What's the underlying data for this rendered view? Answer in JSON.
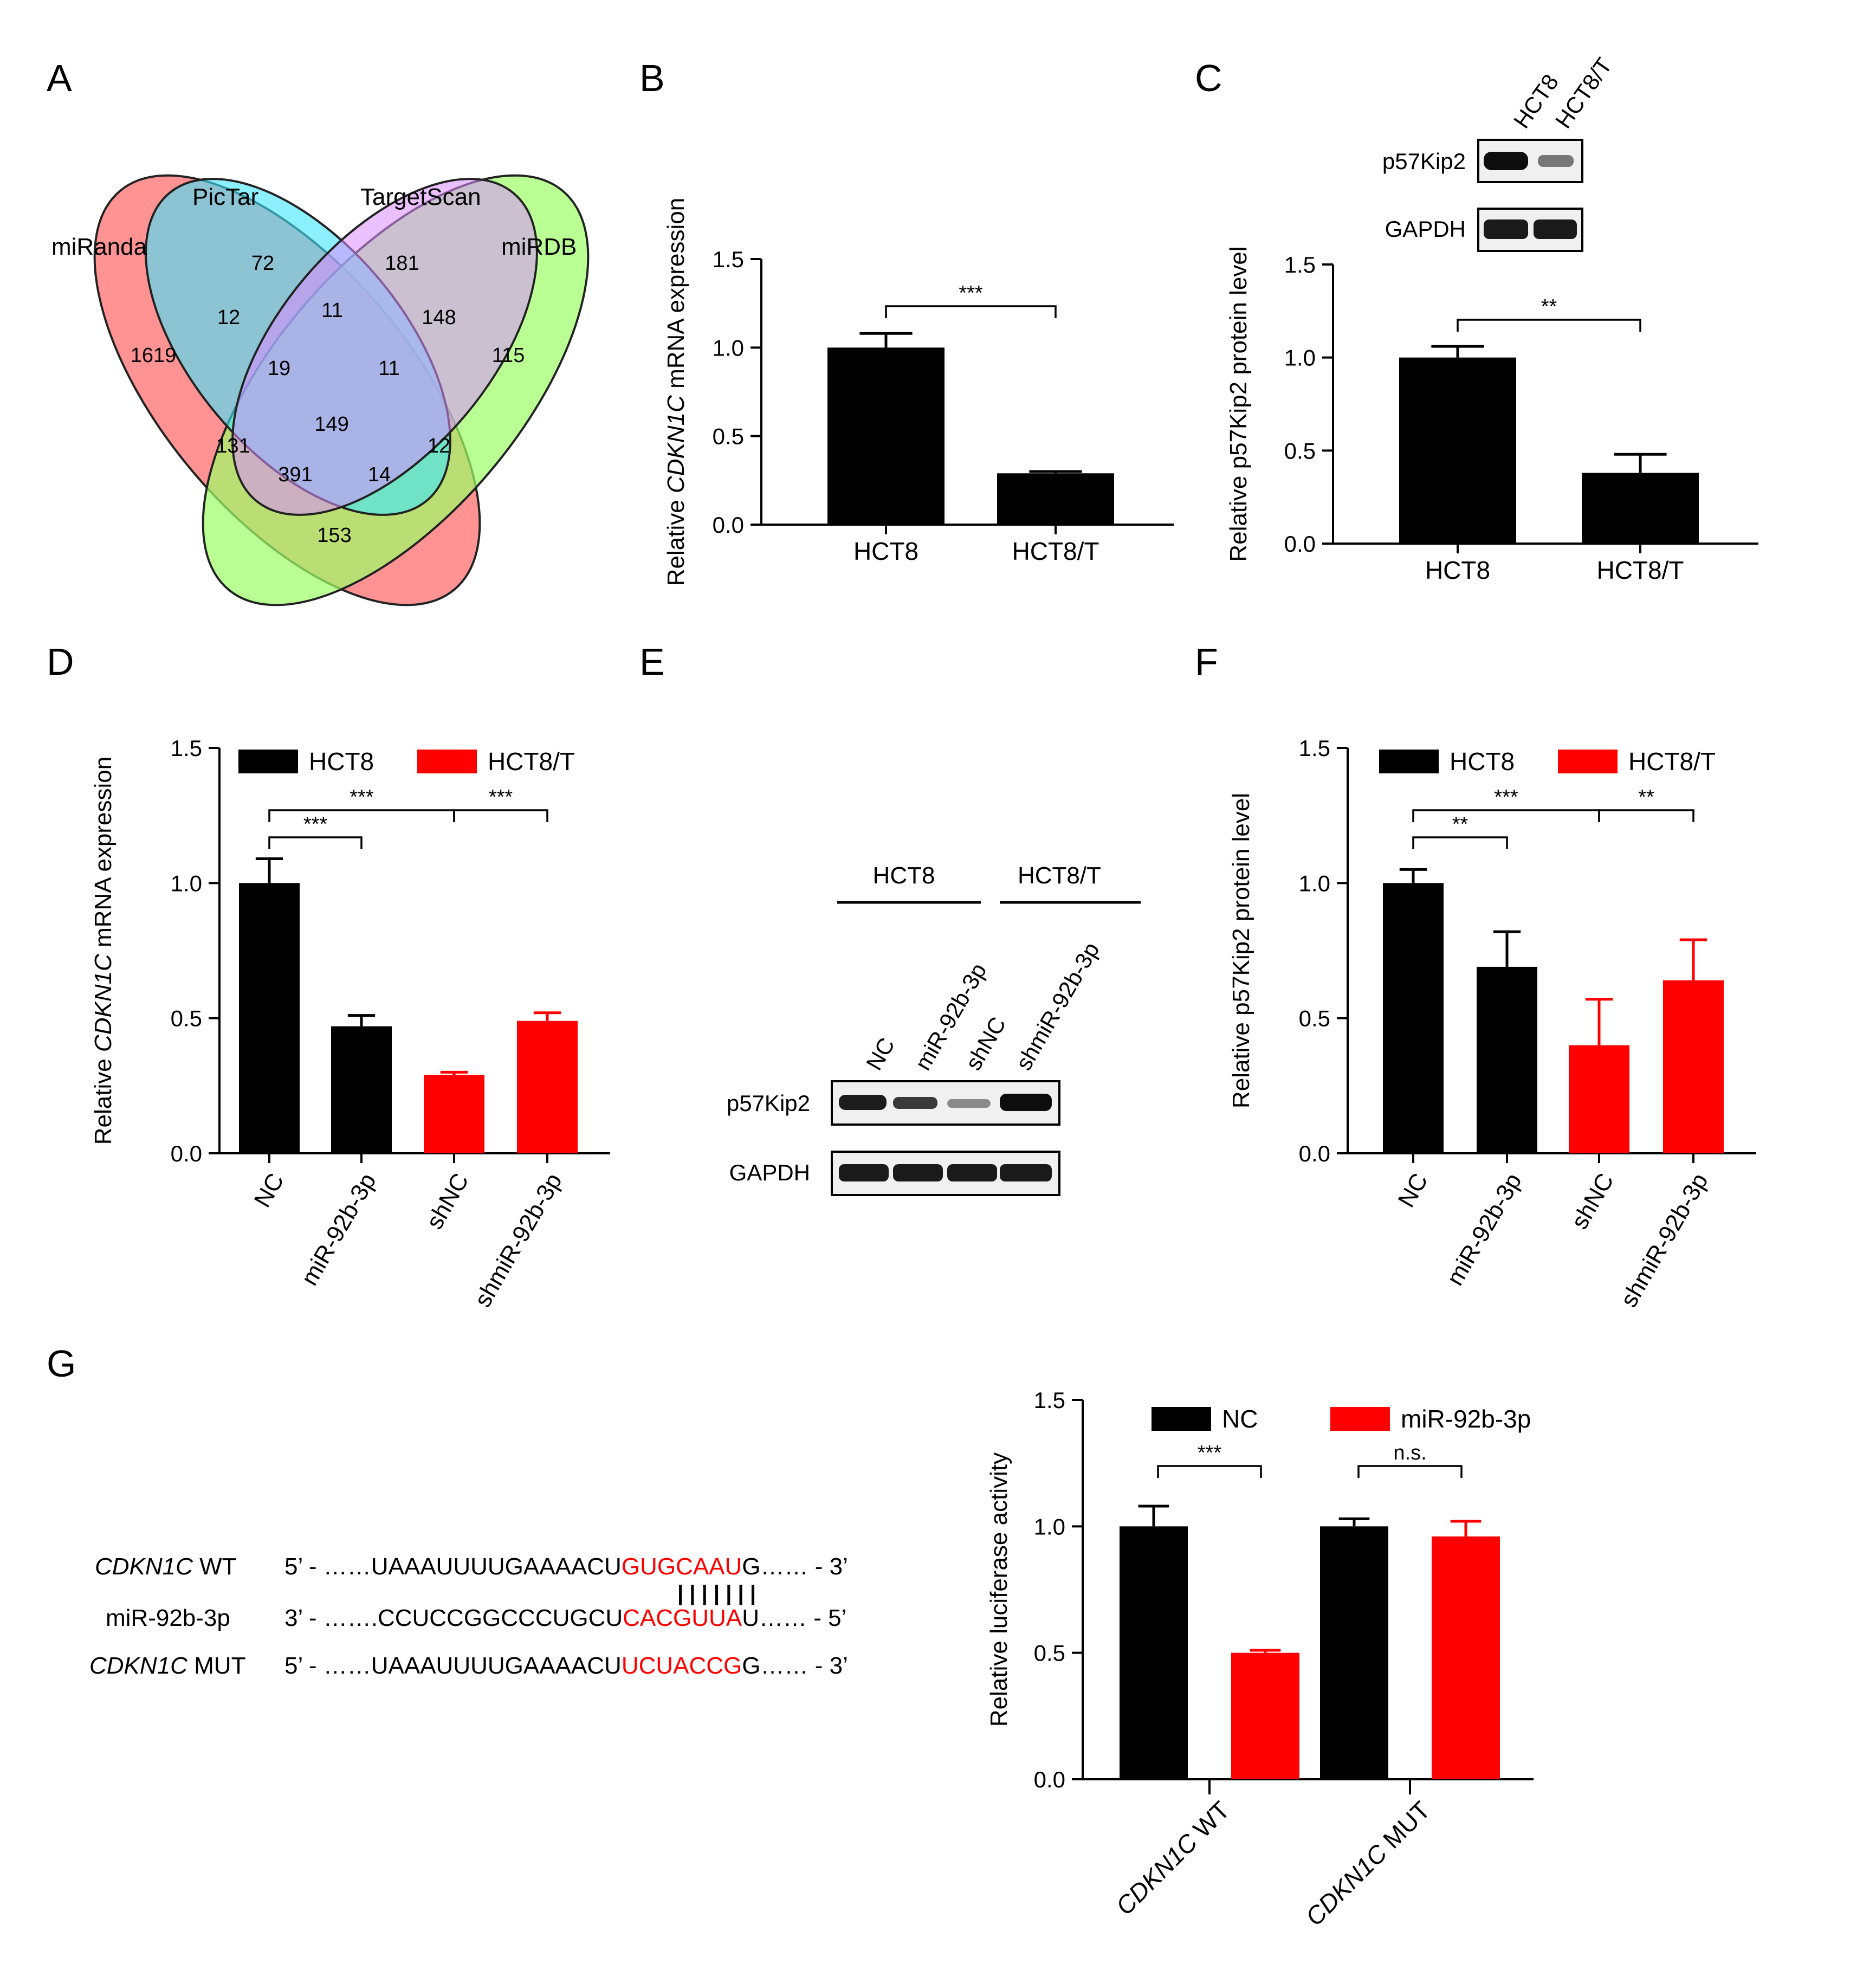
{
  "panels": {
    "A": "A",
    "B": "B",
    "C": "C",
    "D": "D",
    "E": "E",
    "F": "F",
    "G": "G"
  },
  "colors": {
    "black": "#000000",
    "red": "#ff0000"
  },
  "venn": {
    "labels": {
      "miranda": "miRanda",
      "pictar": "PicTar",
      "targetscan": "TargetScan",
      "mirdb": "miRDB"
    },
    "regions": {
      "pictar_only": "72",
      "targetscan_only": "181",
      "miranda_pictar": "12",
      "pictar_targetscan": "11",
      "targetscan_mirdb": "148",
      "miranda_only": "1619",
      "miranda_pictar_targetscan": "19",
      "pictar_targetscan_mirdb": "11",
      "mirdb_only": "115",
      "all_four": "149",
      "miranda_targetscan": "131",
      "pictar_mirdb": "12",
      "miranda_targetscan_mirdb": "391",
      "miranda_pictar_mirdb": "14",
      "miranda_mirdb": "153"
    },
    "colors": {
      "miranda": "#ff7f7f",
      "pictar": "#40e6ff",
      "targetscan": "#d88cff",
      "mirdb": "#9cff66"
    }
  },
  "blots": {
    "c": {
      "lanes": [
        "HCT8",
        "HCT8/T"
      ],
      "rows": [
        "p57Kip2",
        "GAPDH"
      ]
    },
    "e": {
      "groups": [
        "HCT8",
        "HCT8/T"
      ],
      "lanes": [
        "NC",
        "miR-92b-3p",
        "shNC",
        "shmiR-92b-3p"
      ],
      "rows": [
        "p57Kip2",
        "GAPDH"
      ]
    }
  },
  "sequences": {
    "wt": {
      "gene": "CDKN1C",
      "tag": " WT",
      "end5": "5’ - ",
      "pre": "……UAAAUUUUGAAAACU",
      "red": "GUGCAAU",
      "post": "G…… - 3’"
    },
    "mir": {
      "gene": "",
      "tag": "miR-92b-3p",
      "end5": "3’ - ",
      "pre": "…….CCUCCGGCCCUGCU",
      "red": "CACGUUA",
      "post": "U…… - 5’"
    },
    "mut": {
      "gene": "CDKN1C",
      "tag": " MUT",
      "end5": "5’ - ",
      "pre": "……UAAAUUUUGAAAACU",
      "red": "UCUACCG",
      "post": "G…… - 3’"
    },
    "pairing": "| | | | | | |"
  },
  "chart_data": [
    {
      "id": "B",
      "type": "bar",
      "ylabel": "Relative CDKN1C mRNA expression",
      "ylabel_parts": [
        "Relative ",
        "CDKN1C",
        " mRNA expression"
      ],
      "categories": [
        "HCT8",
        "HCT8/T"
      ],
      "values": [
        1.0,
        0.29
      ],
      "errors": [
        0.08,
        0.01
      ],
      "ylim": [
        0,
        1.5
      ],
      "yticks": [
        "0.0",
        "0.5",
        "1.0",
        "1.5"
      ],
      "significance": [
        {
          "from": 0,
          "to": 1,
          "label": "***"
        }
      ]
    },
    {
      "id": "C",
      "type": "bar",
      "ylabel": "Relative p57Kip2 protein level",
      "categories": [
        "HCT8",
        "HCT8/T"
      ],
      "values": [
        1.0,
        0.38
      ],
      "errors": [
        0.06,
        0.1
      ],
      "ylim": [
        0,
        1.5
      ],
      "yticks": [
        "0.0",
        "0.5",
        "1.0",
        "1.5"
      ],
      "significance": [
        {
          "from": 0,
          "to": 1,
          "label": "**"
        }
      ]
    },
    {
      "id": "D",
      "type": "bar",
      "ylabel": "Relative CDKN1C mRNA expression",
      "ylabel_parts": [
        "Relative ",
        "CDKN1C",
        " mRNA expression"
      ],
      "categories": [
        "NC",
        "miR-92b-3p",
        "shNC",
        "shmiR-92b-3p"
      ],
      "values": [
        1.0,
        0.47,
        0.29,
        0.49
      ],
      "errors": [
        0.09,
        0.04,
        0.01,
        0.03
      ],
      "groups": [
        "HCT8",
        "HCT8",
        "HCT8/T",
        "HCT8/T"
      ],
      "legend": [
        "HCT8",
        "HCT8/T"
      ],
      "ylim": [
        0,
        1.5
      ],
      "yticks": [
        "0.0",
        "0.5",
        "1.0",
        "1.5"
      ],
      "significance": [
        {
          "from": 0,
          "to": 1,
          "label": "***",
          "level": 0
        },
        {
          "from": 0,
          "to": 2,
          "label": "***",
          "level": 1
        },
        {
          "from": 2,
          "to": 3,
          "label": "***",
          "level": 1
        }
      ]
    },
    {
      "id": "F",
      "type": "bar",
      "ylabel": "Relative p57Kip2 protein level",
      "categories": [
        "NC",
        "miR-92b-3p",
        "shNC",
        "shmiR-92b-3p"
      ],
      "values": [
        1.0,
        0.69,
        0.4,
        0.64
      ],
      "errors": [
        0.05,
        0.13,
        0.17,
        0.15
      ],
      "groups": [
        "HCT8",
        "HCT8",
        "HCT8/T",
        "HCT8/T"
      ],
      "legend": [
        "HCT8",
        "HCT8/T"
      ],
      "ylim": [
        0,
        1.5
      ],
      "yticks": [
        "0.0",
        "0.5",
        "1.0",
        "1.5"
      ],
      "significance": [
        {
          "from": 0,
          "to": 1,
          "label": "**",
          "level": 0
        },
        {
          "from": 0,
          "to": 2,
          "label": "***",
          "level": 1
        },
        {
          "from": 2,
          "to": 3,
          "label": "**",
          "level": 1
        }
      ]
    },
    {
      "id": "G",
      "type": "bar",
      "ylabel": "Relative luciferase activity",
      "categories": [
        "CDKN1C WT",
        "CDKN1C MUT"
      ],
      "category_parts": [
        [
          "CDKN1C",
          " WT"
        ],
        [
          "CDKN1C",
          " MUT"
        ]
      ],
      "series": [
        {
          "name": "NC",
          "values": [
            1.0,
            1.0
          ],
          "errors": [
            0.08,
            0.03
          ]
        },
        {
          "name": "miR-92b-3p",
          "values": [
            0.5,
            0.96
          ],
          "errors": [
            0.01,
            0.06
          ]
        }
      ],
      "ylim": [
        0,
        1.5
      ],
      "yticks": [
        "0.0",
        "0.5",
        "1.0",
        "1.5"
      ],
      "significance": [
        {
          "category": 0,
          "label": "***"
        },
        {
          "category": 1,
          "label": "n.s."
        }
      ]
    }
  ]
}
